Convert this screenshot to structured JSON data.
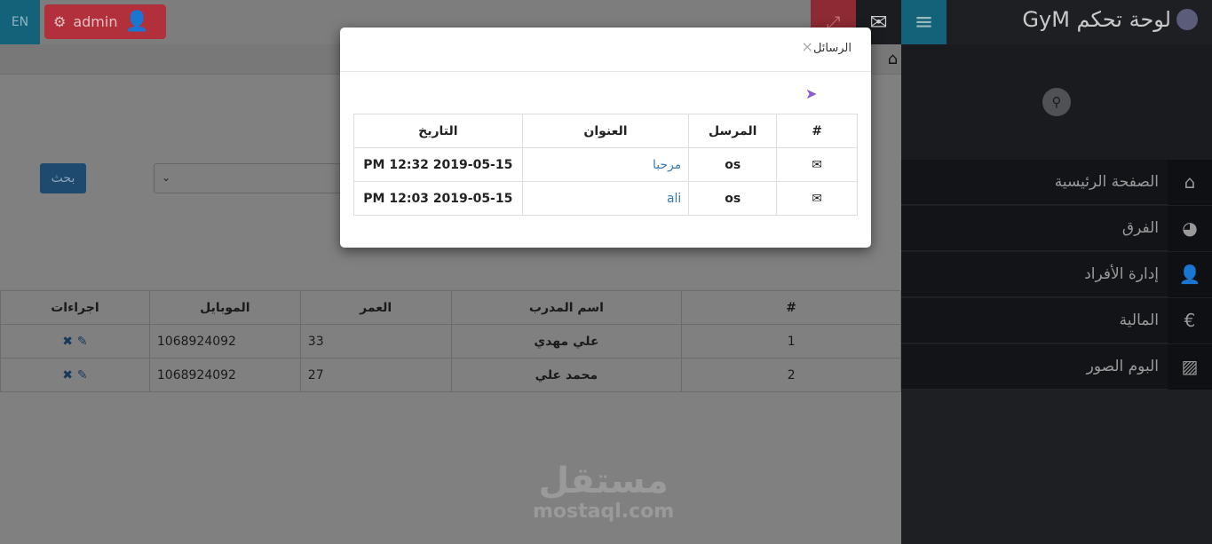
{
  "header": {
    "lang": "EN",
    "user": "admin",
    "expand_icon": "expand-icon",
    "mail_icon": "envelope-icon"
  },
  "sidebar": {
    "brand": "لوحة تحكم GyM",
    "items": [
      {
        "label": "الصفحة الرئيسية",
        "icon": "home-icon",
        "glyph": "⌂"
      },
      {
        "label": "الفرق",
        "icon": "globe-icon",
        "glyph": "◕"
      },
      {
        "label": "إدارة الأفراد",
        "icon": "user-icon",
        "glyph": "👤"
      },
      {
        "label": "المالية",
        "icon": "euro-icon",
        "glyph": "€"
      },
      {
        "label": "البوم الصور",
        "icon": "picture-icon",
        "glyph": "▨"
      }
    ]
  },
  "search": {
    "button": "بحث",
    "select_value": ""
  },
  "table": {
    "headers": [
      "#",
      "اسم المدرب",
      "العمر",
      "الموبايل",
      "اجراءات"
    ],
    "rows": [
      [
        "1",
        "علي مهدي",
        "33",
        "1068924092"
      ],
      [
        "2",
        "محمد علي",
        "27",
        "1068924092"
      ]
    ]
  },
  "modal": {
    "title": "الرسائل",
    "close": "×",
    "headers": [
      "#",
      "المرسل",
      "العنوان",
      "التاريخ"
    ],
    "rows": [
      {
        "sender": "os",
        "title": "مرحبا",
        "date": "PM 12:32 2019-05-15"
      },
      {
        "sender": "os",
        "title": "ali",
        "date": "PM 12:03 2019-05-15"
      }
    ]
  },
  "watermark": {
    "arabic": "مستقل",
    "latin": "mostaql.com"
  },
  "colors": {
    "teal": "#14617a",
    "red": "#b1303b",
    "sidebar": "#1e1f23",
    "link": "#3a7bb0",
    "send": "#8a5ad6"
  }
}
